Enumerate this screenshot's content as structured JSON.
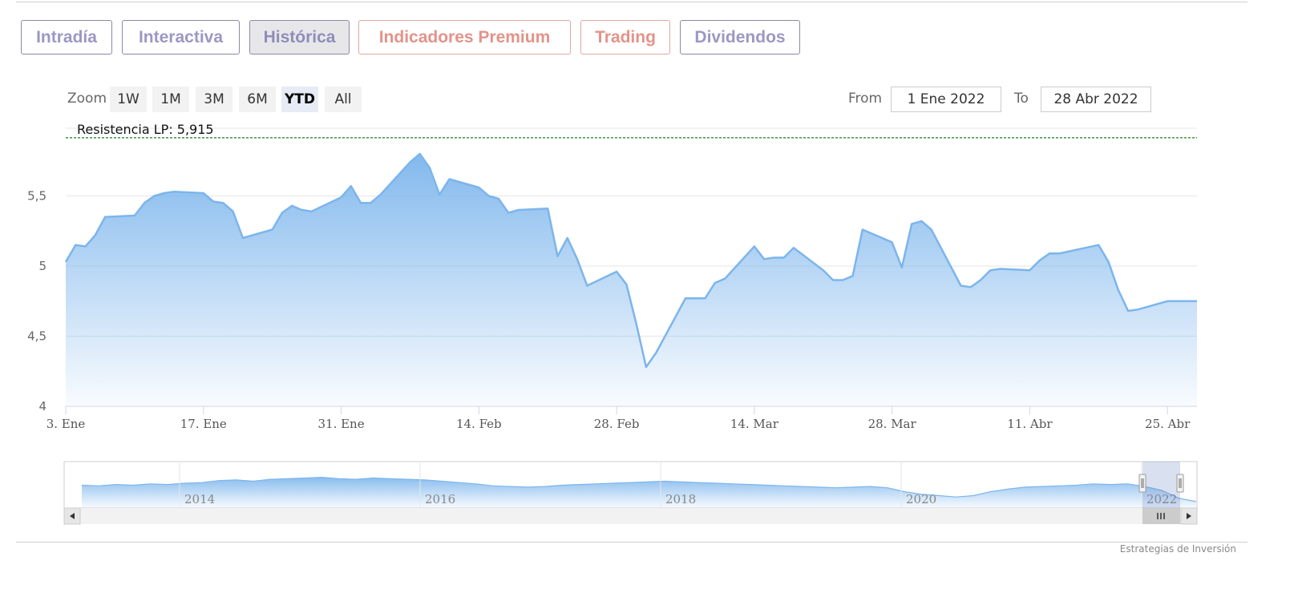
{
  "tabs": [
    {
      "label": "Intradía",
      "state": "normal"
    },
    {
      "label": "Interactiva",
      "state": "normal"
    },
    {
      "label": "Histórica",
      "state": "active"
    },
    {
      "label": "Indicadores Premium",
      "state": "premium"
    },
    {
      "label": "Trading",
      "state": "premium"
    },
    {
      "label": "Dividendos",
      "state": "normal"
    }
  ],
  "zoom": {
    "label": "Zoom",
    "buttons": [
      "1W",
      "1M",
      "3M",
      "6M",
      "YTD",
      "All"
    ],
    "selected": "YTD"
  },
  "range": {
    "from_label": "From",
    "from_value": "1 Ene 2022",
    "to_label": "To",
    "to_value": "28 Abr 2022"
  },
  "credit": "Estrategias de Inversión",
  "colors": {
    "line": "#7cb5ec",
    "area_top": "#7cb5ec",
    "resistance": "#1e7a1e",
    "grid": "#e6e6e6"
  },
  "chart_data": {
    "type": "area",
    "x_range": [
      "2022-01-03",
      "2022-04-28"
    ],
    "ylim": [
      4,
      5.95
    ],
    "y_ticks": [
      4,
      4.5,
      5,
      5.5
    ],
    "y_tick_labels": [
      "4",
      "4,5",
      "5",
      "5,5"
    ],
    "x_ticks": [
      {
        "date": "2022-01-03",
        "label": "3. Ene"
      },
      {
        "date": "2022-01-17",
        "label": "17. Ene"
      },
      {
        "date": "2022-01-31",
        "label": "31. Ene"
      },
      {
        "date": "2022-02-14",
        "label": "14. Feb"
      },
      {
        "date": "2022-02-28",
        "label": "28. Feb"
      },
      {
        "date": "2022-03-14",
        "label": "14. Mar"
      },
      {
        "date": "2022-03-28",
        "label": "28. Mar"
      },
      {
        "date": "2022-04-11",
        "label": "11. Abr"
      },
      {
        "date": "2022-04-25",
        "label": "25. Abr"
      }
    ],
    "resistance": {
      "label": "Resistencia LP: 5,915",
      "value": 5.915
    },
    "series": [
      {
        "x": [
          "2022-01-03",
          "2022-01-04",
          "2022-01-05",
          "2022-01-06",
          "2022-01-07",
          "2022-01-10",
          "2022-01-11",
          "2022-01-12",
          "2022-01-13",
          "2022-01-14",
          "2022-01-17",
          "2022-01-18",
          "2022-01-19",
          "2022-01-20",
          "2022-01-21",
          "2022-01-24",
          "2022-01-25",
          "2022-01-26",
          "2022-01-27",
          "2022-01-28",
          "2022-01-31",
          "2022-02-01",
          "2022-02-02",
          "2022-02-03",
          "2022-02-04",
          "2022-02-07",
          "2022-02-08",
          "2022-02-09",
          "2022-02-10",
          "2022-02-11",
          "2022-02-14",
          "2022-02-15",
          "2022-02-16",
          "2022-02-17",
          "2022-02-18",
          "2022-02-21",
          "2022-02-22",
          "2022-02-23",
          "2022-02-24",
          "2022-02-25",
          "2022-02-28",
          "2022-03-01",
          "2022-03-02",
          "2022-03-03",
          "2022-03-04",
          "2022-03-07",
          "2022-03-08",
          "2022-03-09",
          "2022-03-10",
          "2022-03-11",
          "2022-03-14",
          "2022-03-15",
          "2022-03-16",
          "2022-03-17",
          "2022-03-18",
          "2022-03-21",
          "2022-03-22",
          "2022-03-23",
          "2022-03-24",
          "2022-03-25",
          "2022-03-28",
          "2022-03-29",
          "2022-03-30",
          "2022-03-31",
          "2022-04-01",
          "2022-04-04",
          "2022-04-05",
          "2022-04-06",
          "2022-04-07",
          "2022-04-08",
          "2022-04-11",
          "2022-04-12",
          "2022-04-13",
          "2022-04-14",
          "2022-04-18",
          "2022-04-19",
          "2022-04-20",
          "2022-04-21",
          "2022-04-22",
          "2022-04-25",
          "2022-04-26",
          "2022-04-27",
          "2022-04-28"
        ],
        "values": [
          5.03,
          5.15,
          5.14,
          5.22,
          5.35,
          5.36,
          5.45,
          5.5,
          5.52,
          5.53,
          5.52,
          5.46,
          5.45,
          5.39,
          5.2,
          5.26,
          5.38,
          5.43,
          5.4,
          5.39,
          5.49,
          5.57,
          5.45,
          5.45,
          5.51,
          5.74,
          5.8,
          5.7,
          5.51,
          5.62,
          5.56,
          5.5,
          5.48,
          5.38,
          5.4,
          5.41,
          5.07,
          5.2,
          5.05,
          4.86,
          4.96,
          4.87,
          4.59,
          4.28,
          4.38,
          4.77,
          4.77,
          4.77,
          4.88,
          4.91,
          5.14,
          5.05,
          5.06,
          5.06,
          5.13,
          4.97,
          4.9,
          4.9,
          4.93,
          5.26,
          5.17,
          4.99,
          5.3,
          5.32,
          5.26,
          4.86,
          4.85,
          4.9,
          4.97,
          4.98,
          4.97,
          5.04,
          5.09,
          5.09,
          5.15,
          5.03,
          4.83,
          4.68,
          4.69,
          4.75,
          4.75,
          4.75,
          4.75
        ]
      }
    ],
    "navigator": {
      "x_ticks": [
        "2014",
        "2016",
        "2018",
        "2020",
        "2022"
      ],
      "values": [
        6.0,
        5.95,
        6.05,
        6.0,
        6.1,
        6.05,
        6.15,
        6.2,
        6.35,
        6.4,
        6.3,
        6.45,
        6.5,
        6.55,
        6.6,
        6.5,
        6.45,
        6.55,
        6.5,
        6.45,
        6.4,
        6.3,
        6.2,
        6.1,
        5.95,
        5.9,
        5.85,
        5.9,
        6.0,
        6.05,
        6.1,
        6.15,
        6.2,
        6.25,
        6.3,
        6.25,
        6.2,
        6.15,
        6.1,
        6.05,
        6.0,
        5.95,
        5.9,
        5.85,
        5.8,
        5.85,
        5.9,
        5.8,
        5.5,
        5.3,
        5.2,
        5.1,
        5.2,
        5.5,
        5.7,
        5.85,
        5.9,
        5.95,
        6.0,
        6.1,
        6.05,
        6.1,
        5.9,
        5.6,
        5.0,
        4.75
      ]
    }
  }
}
